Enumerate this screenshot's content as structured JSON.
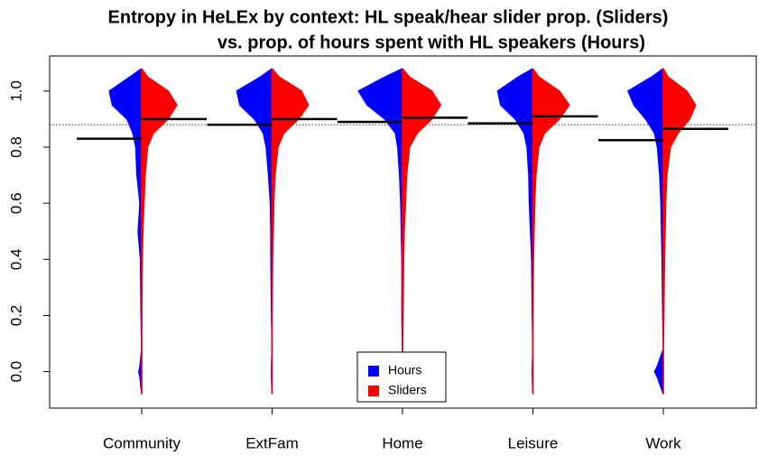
{
  "chart_data": {
    "type": "bean",
    "title": "Entropy in HeLEx by context: HL speak/hear slider prop. (Sliders)",
    "subtitle": "vs. prop. of hours spent with HL speakers (Hours)",
    "categories": [
      "Community",
      "ExtFam",
      "Home",
      "Leisure",
      "Work"
    ],
    "ylim": [
      -0.13,
      1.125
    ],
    "yticks": [
      {
        "value": 0,
        "label": "0.0"
      },
      {
        "value": 0.2,
        "label": "0.2"
      },
      {
        "value": 0.4,
        "label": "0.4"
      },
      {
        "value": 0.6,
        "label": "0.6"
      },
      {
        "value": 0.8,
        "label": "0.8"
      },
      {
        "value": 1,
        "label": "1.0"
      }
    ],
    "overall_mean": 0.88,
    "density_y": [
      -0.08,
      -0.02,
      0.0,
      0.02,
      0.08,
      0.2,
      0.4,
      0.5,
      0.6,
      0.7,
      0.8,
      0.85,
      0.9,
      0.95,
      1.0,
      1.05,
      1.08
    ],
    "series": [
      {
        "name": "Hours",
        "color": "#0000ff",
        "values": [
          0.83,
          0.88,
          0.89,
          0.885,
          0.825
        ],
        "density": [
          [
            0,
            0.03,
            0.05,
            0.03,
            0,
            0.01,
            0.02,
            0.06,
            0.03,
            0.08,
            0.1,
            0.15,
            0.25,
            0.5,
            0.55,
            0.2,
            0
          ],
          [
            0,
            0.01,
            0.01,
            0.01,
            0,
            0.01,
            0.02,
            0.02,
            0.03,
            0.06,
            0.1,
            0.15,
            0.3,
            0.55,
            0.6,
            0.2,
            0
          ],
          [
            0,
            0,
            0,
            0,
            0,
            0.01,
            0.01,
            0.02,
            0.03,
            0.05,
            0.08,
            0.12,
            0.3,
            0.6,
            0.75,
            0.3,
            0
          ],
          [
            0,
            0.01,
            0.01,
            0.01,
            0,
            0.01,
            0.02,
            0.04,
            0.06,
            0.07,
            0.1,
            0.15,
            0.3,
            0.55,
            0.6,
            0.25,
            0
          ],
          [
            0,
            0.1,
            0.15,
            0.1,
            0,
            0.01,
            0.02,
            0.03,
            0.04,
            0.06,
            0.1,
            0.15,
            0.3,
            0.5,
            0.6,
            0.2,
            0
          ]
        ]
      },
      {
        "name": "Sliders",
        "color": "#ff0000",
        "values": [
          0.9,
          0.9,
          0.905,
          0.91,
          0.865
        ],
        "density": [
          [
            0,
            0,
            0,
            0,
            0,
            0,
            0.01,
            0.02,
            0.04,
            0.06,
            0.1,
            0.2,
            0.45,
            0.6,
            0.45,
            0.1,
            0
          ],
          [
            0,
            0,
            0,
            0,
            0,
            0,
            0.01,
            0.02,
            0.03,
            0.05,
            0.1,
            0.2,
            0.45,
            0.62,
            0.5,
            0.12,
            0
          ],
          [
            0,
            0,
            0,
            0,
            0,
            0.01,
            0.02,
            0.03,
            0.05,
            0.07,
            0.12,
            0.25,
            0.5,
            0.65,
            0.5,
            0.12,
            0
          ],
          [
            0,
            0,
            0,
            0,
            0,
            0,
            0.01,
            0.02,
            0.03,
            0.05,
            0.1,
            0.2,
            0.45,
            0.62,
            0.45,
            0.1,
            0
          ],
          [
            0,
            0,
            0,
            0,
            0,
            0.01,
            0.02,
            0.03,
            0.04,
            0.06,
            0.12,
            0.25,
            0.45,
            0.55,
            0.4,
            0.08,
            0
          ]
        ]
      }
    ]
  }
}
